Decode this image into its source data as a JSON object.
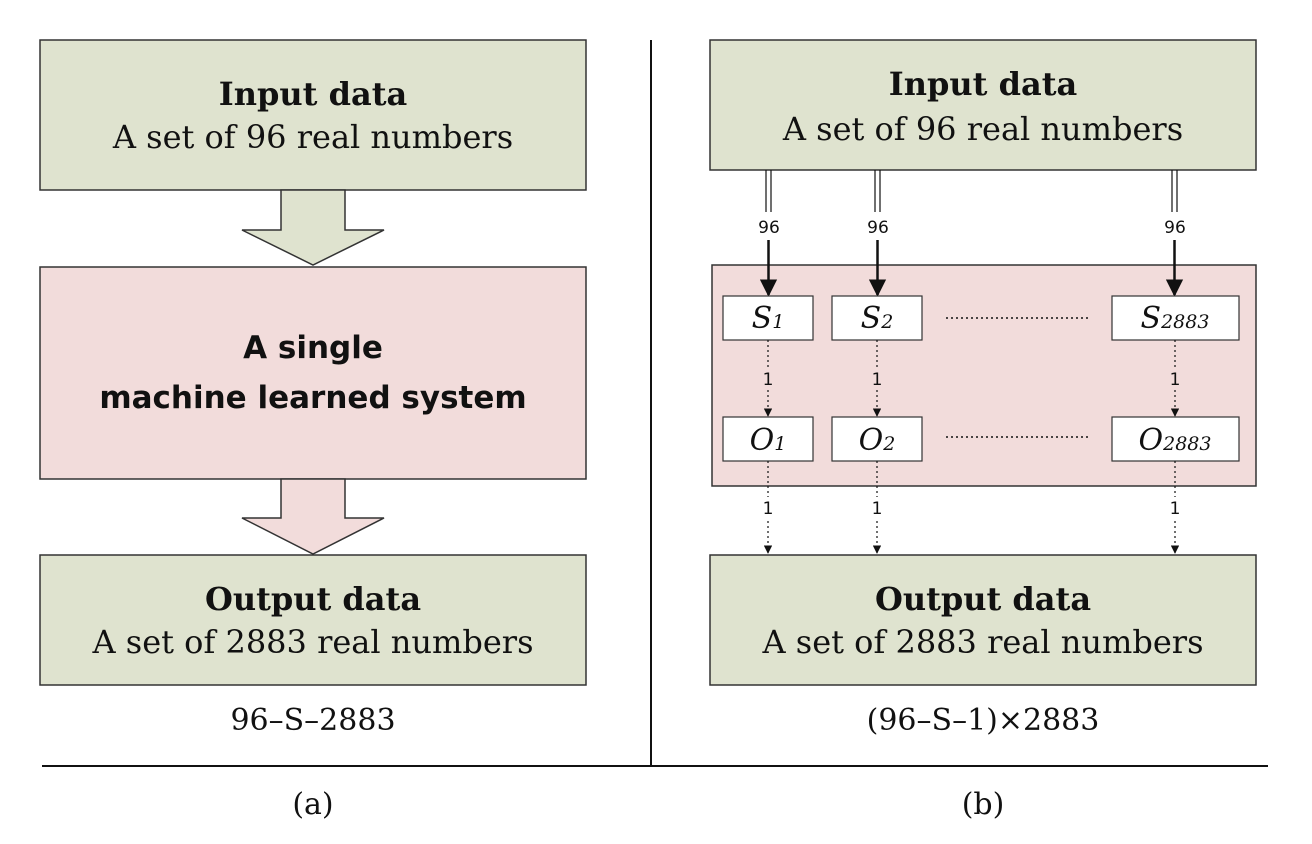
{
  "colors": {
    "io_fill": "#dfe3cf",
    "system_fill": "#f2dcdb",
    "stroke": "#333333",
    "node_fill": "#ffffff"
  },
  "panel_a": {
    "input_title": "Input data",
    "input_desc": "A set of 96 real numbers",
    "system_line1": "A single",
    "system_line2": "machine learned system",
    "output_title": "Output data",
    "output_desc": "A set of 2883 real numbers",
    "formula": "96–S–2883",
    "caption": "(a)"
  },
  "panel_b": {
    "input_title": "Input data",
    "input_desc": "A set of 96 real numbers",
    "input_edge_labels": [
      "96",
      "96",
      "96"
    ],
    "systems": [
      {
        "base": "S",
        "sub": "1"
      },
      {
        "base": "S",
        "sub": "2"
      },
      {
        "base": "S",
        "sub": "2883"
      }
    ],
    "outputs": [
      {
        "base": "O",
        "sub": "1"
      },
      {
        "base": "O",
        "sub": "2"
      },
      {
        "base": "O",
        "sub": "2883"
      }
    ],
    "system_edge_labels": [
      "1",
      "1",
      "1"
    ],
    "output_edge_labels": [
      "1",
      "1",
      "1"
    ],
    "output_title": "Output data",
    "output_desc": "A set of 2883 real numbers",
    "formula": "(96–S–1)×2883",
    "caption": "(b)"
  }
}
